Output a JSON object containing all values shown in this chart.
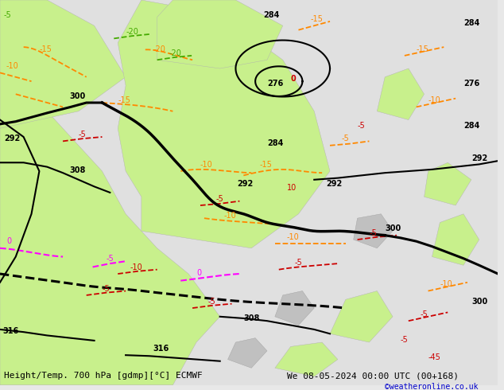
{
  "title_left": "Height/Temp. 700 hPa [gdmp][°C] ECMWF",
  "title_right": "We 08-05-2024 00:00 UTC (00+168)",
  "credit": "©weatheronline.co.uk",
  "bg_color": "#f0f0f0",
  "land_green": "#c8f08c",
  "land_dark": "#a0c870",
  "sea_color": "#e8e8e8",
  "height_contour_color": "#000000",
  "temp_warm_color": "#ff8800",
  "temp_cold_color": "#cc0000",
  "temp_vwarm_color": "#ff4400",
  "temp_zero_color": "#ff00ff",
  "temp_green_color": "#44aa00",
  "font_size_label": 7,
  "font_size_bottom": 8
}
